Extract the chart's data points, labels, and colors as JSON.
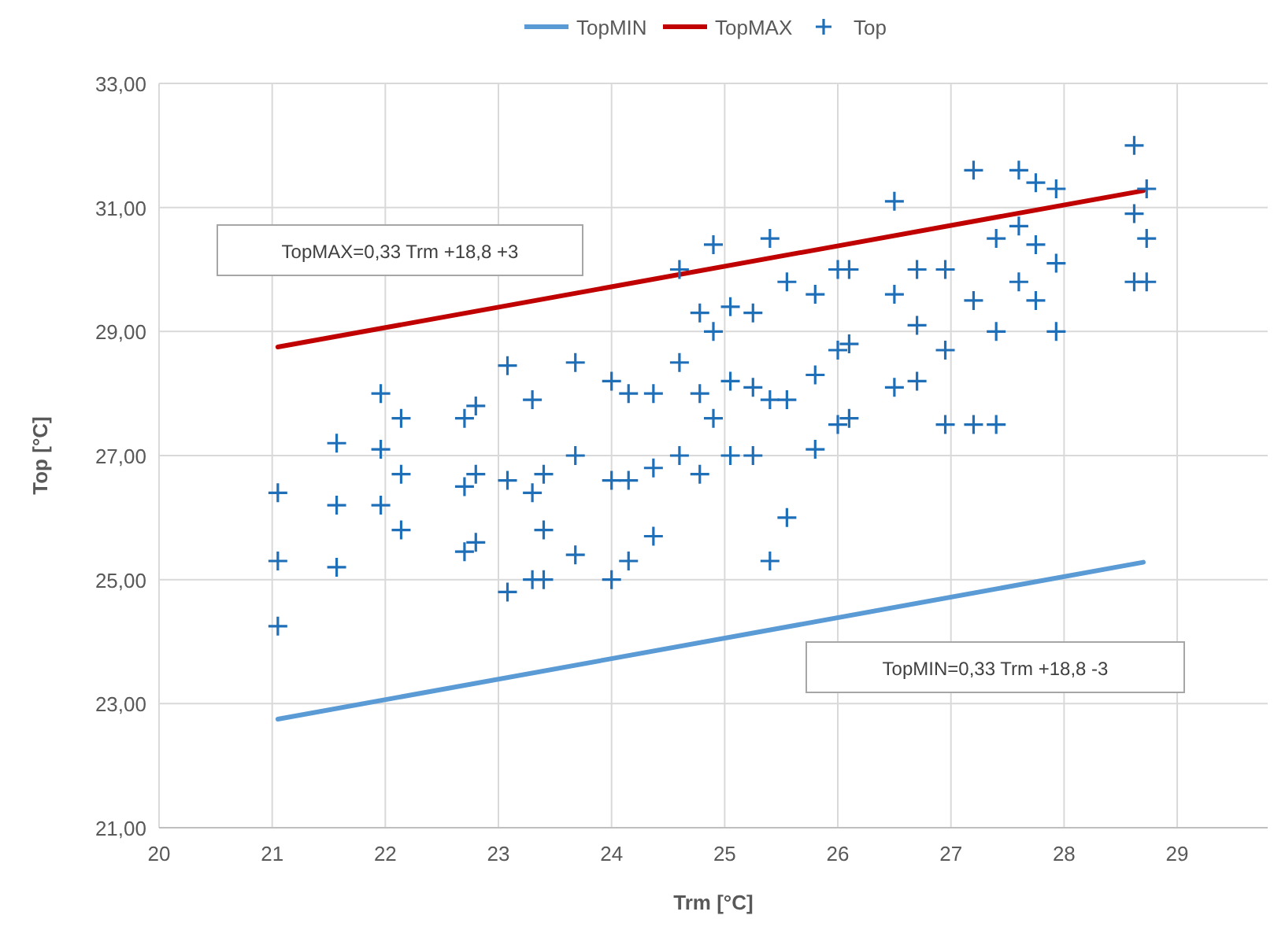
{
  "chart_data": {
    "type": "scatter",
    "xlabel": "Trm [°C]",
    "ylabel": "Top [°C]",
    "xlim": [
      20,
      29.8
    ],
    "xticks": [
      20,
      21,
      22,
      23,
      24,
      25,
      26,
      27,
      28,
      29
    ],
    "ylim": [
      21,
      33
    ],
    "yticks": [
      {
        "value": 21,
        "label": "21,00"
      },
      {
        "value": 23,
        "label": "23,00"
      },
      {
        "value": 25,
        "label": "25,00"
      },
      {
        "value": 27,
        "label": "27,00"
      },
      {
        "value": 29,
        "label": "29,00"
      },
      {
        "value": 31,
        "label": "31,00"
      },
      {
        "value": 33,
        "label": "33,00"
      }
    ],
    "grid": true,
    "legend": "top",
    "annotations": [
      "TopMAX=0,33 Trm +18,8 +3",
      "TopMIN=0,33 Trm +18,8 -3"
    ],
    "series": [
      {
        "name": "TopMIN",
        "type": "line",
        "color": "#5b9bd5",
        "line_style": "solid",
        "marker": "none",
        "x": [
          21.05,
          28.7
        ],
        "values": [
          22.75,
          25.28
        ]
      },
      {
        "name": "TopMAX",
        "type": "line",
        "color": "#c00000",
        "line_style": "solid",
        "marker": "none",
        "x": [
          21.05,
          28.7
        ],
        "values": [
          28.75,
          31.27
        ]
      },
      {
        "name": "Top",
        "color": "#1f6fb8",
        "marker": "cross",
        "x": [
          21.05,
          21.05,
          21.05,
          21.57,
          21.57,
          21.57,
          21.96,
          21.96,
          21.96,
          22.14,
          22.14,
          22.14,
          22.7,
          22.7,
          22.7,
          22.8,
          22.8,
          22.8,
          23.08,
          23.08,
          23.08,
          23.3,
          23.3,
          23.3,
          23.4,
          23.4,
          23.4,
          23.68,
          23.68,
          23.68,
          24.0,
          24.0,
          24.0,
          24.15,
          24.15,
          24.15,
          24.37,
          24.37,
          24.37,
          24.6,
          24.6,
          24.6,
          24.78,
          24.78,
          24.78,
          24.9,
          24.9,
          24.9,
          25.05,
          25.05,
          25.05,
          25.25,
          25.25,
          25.25,
          25.4,
          25.4,
          25.4,
          25.55,
          25.55,
          25.55,
          25.8,
          25.8,
          25.8,
          26.0,
          26.0,
          26.0,
          26.1,
          26.1,
          26.1,
          26.5,
          26.5,
          26.5,
          26.7,
          26.7,
          26.7,
          26.95,
          26.95,
          26.95,
          27.2,
          27.2,
          27.2,
          27.4,
          27.4,
          27.4,
          27.6,
          27.6,
          27.6,
          27.75,
          27.75,
          27.75,
          27.93,
          27.93,
          27.93,
          28.62,
          28.62,
          28.62,
          28.73,
          28.73,
          28.73
        ],
        "values": [
          26.4,
          25.3,
          24.25,
          27.2,
          26.2,
          25.2,
          28.0,
          27.1,
          26.2,
          27.6,
          26.7,
          25.8,
          27.6,
          26.5,
          25.45,
          27.8,
          26.7,
          25.6,
          28.45,
          26.6,
          24.8,
          27.9,
          26.4,
          25.0,
          26.7,
          25.8,
          25.0,
          28.5,
          27.0,
          25.4,
          28.2,
          26.6,
          25.0,
          28.0,
          26.6,
          25.3,
          28.0,
          26.8,
          25.7,
          30.0,
          28.5,
          27.0,
          29.3,
          28.0,
          26.7,
          30.4,
          29.0,
          27.6,
          29.4,
          28.2,
          27.0,
          29.3,
          28.1,
          27.0,
          30.5,
          27.9,
          25.3,
          29.8,
          27.9,
          26.0,
          29.6,
          28.3,
          27.1,
          30.0,
          28.7,
          27.5,
          30.0,
          28.8,
          27.6,
          31.1,
          29.6,
          28.1,
          30.0,
          29.1,
          28.2,
          30.0,
          28.7,
          27.5,
          31.6,
          29.5,
          27.5,
          30.5,
          29.0,
          27.5,
          31.6,
          30.7,
          29.8,
          31.4,
          30.4,
          29.5,
          31.3,
          30.1,
          29.0,
          32.0,
          30.9,
          29.8,
          31.3,
          30.5,
          29.8
        ]
      }
    ]
  }
}
